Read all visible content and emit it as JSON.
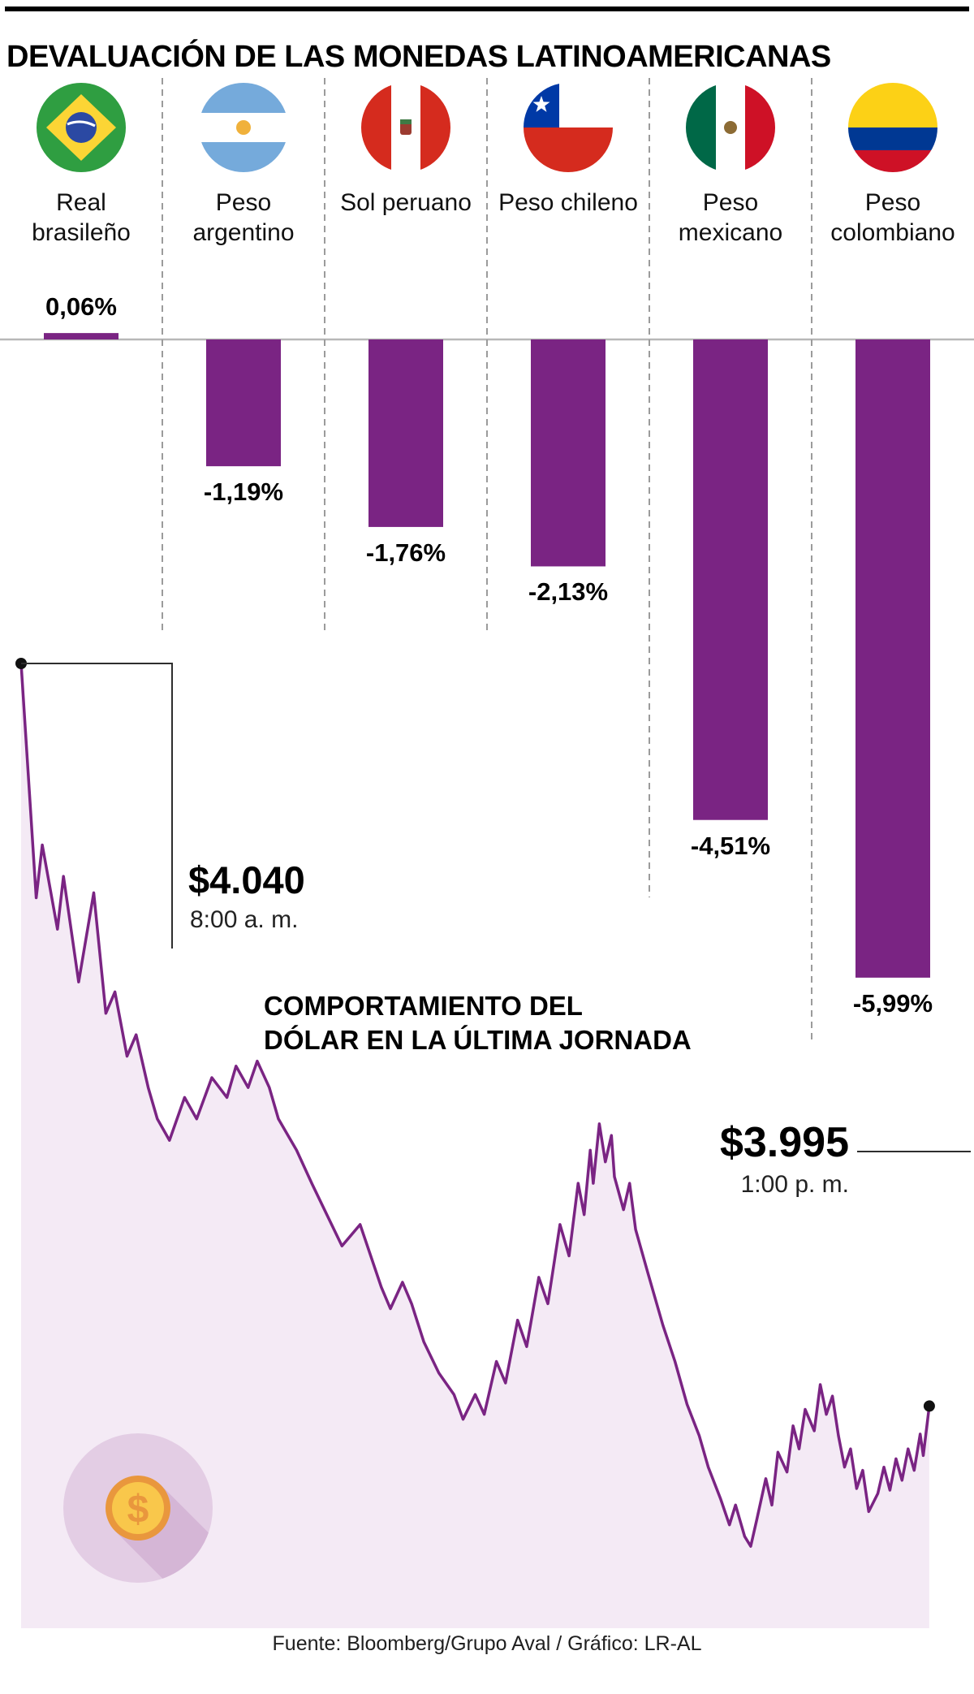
{
  "title": "DEVALUACIÓN DE LAS MONEDAS LATINOAMERICANAS",
  "footer": "Fuente: Bloomberg/Grupo Aval / Gráfico: LR-AL",
  "colors": {
    "bar": "#7a2483",
    "line": "#7a2483",
    "area_fill": "#f4eaf5",
    "baseline": "#b8b8b8",
    "divider": "#9b9b9b",
    "callout": "#2e2e2e",
    "dot": "#111111",
    "coin_bg": "#e3cde4",
    "coin_shadow": "#d5b6d6",
    "coin_rim": "#e9973d",
    "coin_face": "#f9c74b"
  },
  "chart_data": [
    {
      "type": "bar",
      "title": "DEVALUACIÓN DE LAS MONEDAS LATINOAMERICANAS",
      "categories": [
        "Real brasileño",
        "Peso argentino",
        "Sol peruano",
        "Peso chileno",
        "Peso mexicano",
        "Peso colombiano"
      ],
      "flags": [
        "brazil",
        "argentina",
        "peru",
        "chile",
        "mexico",
        "colombia"
      ],
      "values": [
        0.06,
        -1.19,
        -1.76,
        -2.13,
        -4.51,
        -5.99
      ],
      "value_labels": [
        "0,06%",
        "-1,19%",
        "-1,76%",
        "-2,13%",
        "-4,51%",
        "-5,99%"
      ],
      "unit": "%",
      "baseline": 0,
      "grid": "dashed column dividers"
    },
    {
      "type": "line",
      "title_lines": [
        "COMPORTAMIENTO DEL",
        "DÓLAR EN LA ÚLTIMA JORNADA"
      ],
      "start": {
        "value": 4040,
        "value_label": "$4.040",
        "time_label": "8:00 a. m."
      },
      "end": {
        "value": 3995,
        "value_label": "$3.995",
        "time_label": "1:00 p. m."
      },
      "x_unit": "minutes since 8:00 a. m.",
      "x_range": [
        0,
        300
      ],
      "ylim": [
        3985,
        4042
      ],
      "points": [
        [
          0,
          4040
        ],
        [
          5,
          4025.8
        ],
        [
          7,
          4029
        ],
        [
          12,
          4023.9
        ],
        [
          14,
          4027.1
        ],
        [
          19,
          4020.7
        ],
        [
          24,
          4026.1
        ],
        [
          28,
          4018.8
        ],
        [
          31,
          4020.1
        ],
        [
          35,
          4016.2
        ],
        [
          38,
          4017.5
        ],
        [
          42,
          4014.3
        ],
        [
          45,
          4012.4
        ],
        [
          49,
          4011.1
        ],
        [
          54,
          4013.7
        ],
        [
          58,
          4012.4
        ],
        [
          63,
          4014.9
        ],
        [
          68,
          4013.7
        ],
        [
          71,
          4015.6
        ],
        [
          75,
          4014.3
        ],
        [
          78,
          4015.9
        ],
        [
          82,
          4014.3
        ],
        [
          85,
          4012.4
        ],
        [
          91,
          4010.5
        ],
        [
          96,
          4008.5
        ],
        [
          101,
          4006.6
        ],
        [
          106,
          4004.7
        ],
        [
          112,
          4006.0
        ],
        [
          119,
          4002.2
        ],
        [
          122,
          4000.9
        ],
        [
          126,
          4002.5
        ],
        [
          129,
          4001.2
        ],
        [
          133,
          3998.9
        ],
        [
          138,
          3997.0
        ],
        [
          143,
          3995.7
        ],
        [
          146,
          3994.2
        ],
        [
          150,
          3995.7
        ],
        [
          153,
          3994.5
        ],
        [
          157,
          3997.7
        ],
        [
          160,
          3996.4
        ],
        [
          164,
          4000.2
        ],
        [
          167,
          3998.6
        ],
        [
          171,
          4002.8
        ],
        [
          174,
          4001.2
        ],
        [
          178,
          4006.0
        ],
        [
          181,
          4004.1
        ],
        [
          184,
          4008.5
        ],
        [
          186,
          4006.6
        ],
        [
          188,
          4010.5
        ],
        [
          189,
          4008.5
        ],
        [
          191,
          4012.1
        ],
        [
          193,
          4009.8
        ],
        [
          195,
          4011.4
        ],
        [
          196,
          4008.9
        ],
        [
          199,
          4006.9
        ],
        [
          201,
          4008.5
        ],
        [
          203,
          4005.7
        ],
        [
          207,
          4003.1
        ],
        [
          212,
          3999.9
        ],
        [
          216,
          3997.7
        ],
        [
          220,
          3995.1
        ],
        [
          224,
          3993.2
        ],
        [
          227,
          3991.3
        ],
        [
          231,
          3989.4
        ],
        [
          234,
          3987.8
        ],
        [
          236,
          3989.0
        ],
        [
          239,
          3987.1
        ],
        [
          241,
          3986.5
        ],
        [
          243,
          3988.1
        ],
        [
          246,
          3990.6
        ],
        [
          248,
          3989.0
        ],
        [
          250,
          3992.2
        ],
        [
          253,
          3991.0
        ],
        [
          255,
          3993.8
        ],
        [
          257,
          3992.4
        ],
        [
          259,
          3994.8
        ],
        [
          262,
          3993.5
        ],
        [
          264,
          3996.3
        ],
        [
          266,
          3994.5
        ],
        [
          268,
          3995.6
        ],
        [
          270,
          3993.2
        ],
        [
          272,
          3991.3
        ],
        [
          274,
          3992.4
        ],
        [
          276,
          3990.0
        ],
        [
          278,
          3991.1
        ],
        [
          280,
          3988.6
        ],
        [
          283,
          3989.7
        ],
        [
          285,
          3991.3
        ],
        [
          287,
          3989.9
        ],
        [
          289,
          3991.8
        ],
        [
          291,
          3990.5
        ],
        [
          293,
          3992.4
        ],
        [
          295,
          3991.1
        ],
        [
          297,
          3993.3
        ],
        [
          298,
          3992.0
        ],
        [
          300,
          3995.0
        ]
      ]
    }
  ]
}
